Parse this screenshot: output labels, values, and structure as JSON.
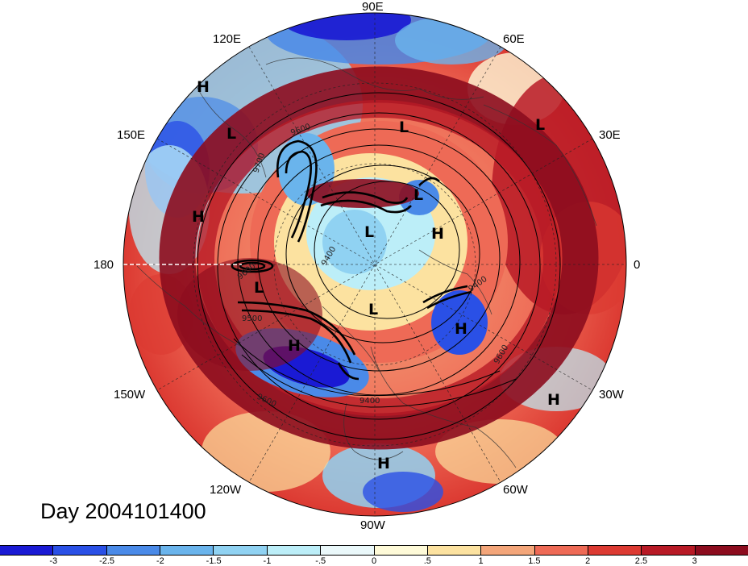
{
  "map": {
    "day_label": "Day 2004101400",
    "longitude_labels": [
      {
        "label": "90E",
        "angle": 90
      },
      {
        "label": "60E",
        "angle": 60
      },
      {
        "label": "30E",
        "angle": 30
      },
      {
        "label": "0",
        "angle": 0
      },
      {
        "label": "30W",
        "angle": -30
      },
      {
        "label": "60W",
        "angle": -60
      },
      {
        "label": "90W",
        "angle": -90
      },
      {
        "label": "120W",
        "angle": -120
      },
      {
        "label": "150W",
        "angle": -150
      },
      {
        "label": "180",
        "angle": 180
      },
      {
        "label": "150E",
        "angle": 150
      },
      {
        "label": "120E",
        "angle": 120
      }
    ],
    "pressure_systems": [
      {
        "mark": "H",
        "type": "high"
      },
      {
        "mark": "L",
        "type": "low"
      },
      {
        "mark": "L",
        "type": "low"
      },
      {
        "mark": "L",
        "type": "low"
      },
      {
        "mark": "L",
        "type": "low"
      },
      {
        "mark": "H",
        "type": "high"
      },
      {
        "mark": "L",
        "type": "low"
      },
      {
        "mark": "H",
        "type": "high"
      },
      {
        "mark": "L",
        "type": "low"
      },
      {
        "mark": "L",
        "type": "low"
      },
      {
        "mark": "H",
        "type": "high"
      },
      {
        "mark": "H",
        "type": "high"
      },
      {
        "mark": "H",
        "type": "high"
      },
      {
        "mark": "H",
        "type": "high"
      }
    ],
    "contour_labels": [
      "9700",
      "9600",
      "9600",
      "9500",
      "9400",
      "9600",
      "9600",
      "9400",
      "9400"
    ]
  },
  "colorbar": {
    "colors": [
      "#1a1ad4",
      "#2a50e6",
      "#4a8ae8",
      "#6ab4ec",
      "#90d2f2",
      "#bceef8",
      "#eaf8fa",
      "#fefad8",
      "#fce2a0",
      "#f4a67a",
      "#ee6a56",
      "#dc3a32",
      "#b81a26",
      "#8c0c1e"
    ],
    "tick_labels": [
      "-3",
      "-2.5",
      "-2",
      "-1.5",
      "-1",
      "-.5",
      "0",
      ".5",
      "1",
      "1.5",
      "2",
      "2.5",
      "3"
    ]
  }
}
